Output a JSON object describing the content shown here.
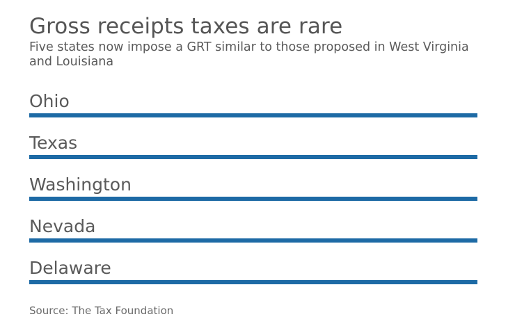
{
  "header": {
    "title": "Gross receipts taxes are rare",
    "subtitle": "Five states now impose a GRT similar to those proposed in West Virginia and Louisiana"
  },
  "states": [
    {
      "name": "Ohio"
    },
    {
      "name": "Texas"
    },
    {
      "name": "Washington"
    },
    {
      "name": "Nevada"
    },
    {
      "name": "Delaware"
    }
  ],
  "colors": {
    "bar": "#1d6aa5"
  },
  "footer": {
    "source": "Source: The Tax Foundation"
  }
}
